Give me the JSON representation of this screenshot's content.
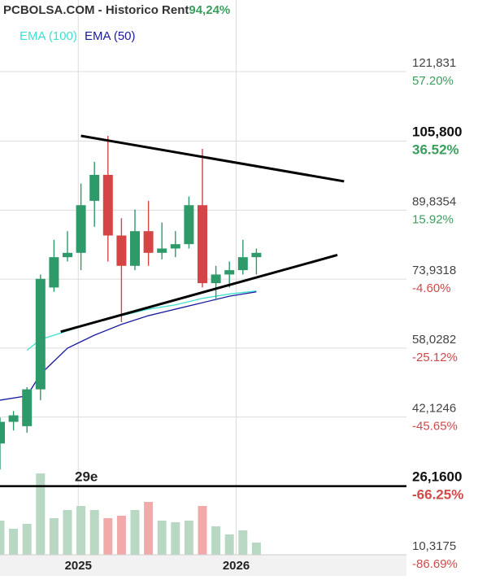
{
  "header": {
    "site": "PCBOLSA.COM",
    "separator": " - ",
    "page": "Historico",
    "rent_label": "Rent",
    "rent_value": "94,24%"
  },
  "legend": [
    {
      "label": "EMA (100)",
      "color": "#40e0d0"
    },
    {
      "label": "EMA (50)",
      "color": "#1a1aa0"
    }
  ],
  "colors": {
    "up": "#2e9a6a",
    "down": "#d64545",
    "vol_up": "#b8d8c4",
    "vol_down": "#f2a9aa",
    "positive_pct": "#3a9e5c",
    "negative_pct": "#d04a4a",
    "grid": "#dcdcdc"
  },
  "chart_data": {
    "type": "candlestick",
    "price_range": [
      10.3175,
      128.0
    ],
    "x_labels": [
      "2025",
      "2026"
    ],
    "price_levels": [
      {
        "price": "121,831",
        "pct": "57.20%",
        "value": 121.831,
        "sign": "pos",
        "emph": false
      },
      {
        "price": "105,800",
        "pct": "36.52%",
        "value": 105.8,
        "sign": "pos",
        "emph": true
      },
      {
        "price": "89,8354",
        "pct": "15.92%",
        "value": 89.8354,
        "sign": "pos",
        "emph": false
      },
      {
        "price": "73,9318",
        "pct": "-4.60%",
        "value": 73.9318,
        "sign": "neg",
        "emph": false
      },
      {
        "price": "58,0282",
        "pct": "-25.12%",
        "value": 58.0282,
        "sign": "neg",
        "emph": false
      },
      {
        "price": "42,1246",
        "pct": "-45.65%",
        "value": 42.1246,
        "sign": "neg",
        "emph": false
      },
      {
        "price": "26,1600",
        "pct": "-66.25%",
        "value": 26.16,
        "sign": "neg",
        "emph": true
      },
      {
        "price": "10,3175",
        "pct": "-86.69%",
        "value": 10.3175,
        "sign": "neg",
        "emph": false
      }
    ],
    "support_line": {
      "label": "29e",
      "value": 26.16
    },
    "candles": [
      {
        "o": 36.0,
        "h": 42.0,
        "l": 30.0,
        "c": 41.0
      },
      {
        "o": 41.0,
        "h": 43.5,
        "l": 39.0,
        "c": 42.5
      },
      {
        "o": 40.0,
        "h": 49.0,
        "l": 38.5,
        "c": 48.5
      },
      {
        "o": 48.5,
        "h": 75.0,
        "l": 46.0,
        "c": 74.0
      },
      {
        "o": 72.0,
        "h": 83.0,
        "l": 71.0,
        "c": 79.0
      },
      {
        "o": 79.0,
        "h": 85.0,
        "l": 78.0,
        "c": 80.0
      },
      {
        "o": 80.0,
        "h": 96.0,
        "l": 76.0,
        "c": 91.0
      },
      {
        "o": 92.0,
        "h": 101.0,
        "l": 86.0,
        "c": 98.0
      },
      {
        "o": 98.0,
        "h": 107.0,
        "l": 78.0,
        "c": 84.0
      },
      {
        "o": 84.0,
        "h": 88.0,
        "l": 64.0,
        "c": 77.0
      },
      {
        "o": 77.0,
        "h": 90.0,
        "l": 76.0,
        "c": 85.0
      },
      {
        "o": 85.0,
        "h": 92.0,
        "l": 77.0,
        "c": 80.0
      },
      {
        "o": 80.0,
        "h": 87.0,
        "l": 78.5,
        "c": 81.0
      },
      {
        "o": 81.0,
        "h": 85.0,
        "l": 79.0,
        "c": 82.0
      },
      {
        "o": 82.0,
        "h": 93.0,
        "l": 81.0,
        "c": 91.0
      },
      {
        "o": 91.0,
        "h": 104.0,
        "l": 72.0,
        "c": 73.0
      },
      {
        "o": 73.0,
        "h": 77.0,
        "l": 69.0,
        "c": 75.0
      },
      {
        "o": 75.0,
        "h": 78.0,
        "l": 72.0,
        "c": 76.0
      },
      {
        "o": 76.0,
        "h": 83.0,
        "l": 75.0,
        "c": 79.0
      },
      {
        "o": 79.0,
        "h": 81.0,
        "l": 75.0,
        "c": 80.0
      }
    ],
    "volumes": [
      0.42,
      0.32,
      0.38,
      1.0,
      0.45,
      0.55,
      0.6,
      0.55,
      0.45,
      0.48,
      0.55,
      0.65,
      0.42,
      0.4,
      0.42,
      0.6,
      0.35,
      0.25,
      0.3,
      0.15
    ],
    "ema50": [
      [
        0,
        46.0
      ],
      [
        2,
        47.0
      ],
      [
        3,
        52.0
      ],
      [
        4,
        55.0
      ],
      [
        5,
        58.0
      ],
      [
        6,
        59.5
      ],
      [
        7,
        61.0
      ],
      [
        9,
        63.5
      ],
      [
        11,
        65.5
      ],
      [
        13,
        67.0
      ],
      [
        15,
        68.5
      ],
      [
        17,
        70.0
      ],
      [
        19,
        71.0
      ]
    ],
    "ema100": [
      [
        2,
        57.5
      ],
      [
        3,
        60.0
      ],
      [
        5,
        62.0
      ],
      [
        7,
        64.0
      ],
      [
        9,
        65.5
      ],
      [
        11,
        67.0
      ],
      [
        13,
        68.0
      ],
      [
        15,
        69.5
      ],
      [
        17,
        70.5
      ],
      [
        19,
        71.2
      ]
    ],
    "trend_upper": [
      [
        6,
        107.0
      ],
      [
        25.5,
        96.5
      ]
    ],
    "trend_lower": [
      [
        4.5,
        61.8
      ],
      [
        25,
        79.5
      ]
    ]
  }
}
